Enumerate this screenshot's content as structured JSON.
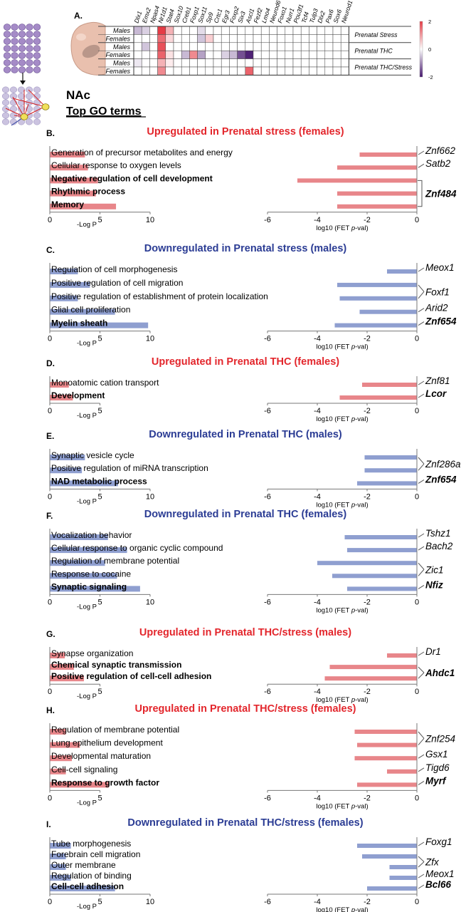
{
  "header": {
    "panel_letter": "A.",
    "region": "NAc",
    "subtitle": "Top GO terms"
  },
  "heatmap": {
    "genes": [
      "Dlx1",
      "Emx2",
      "Npas4",
      "Nr1d1",
      "Stat4",
      "Sox10",
      "Creb1",
      "Foxp1",
      "Sox11",
      "Sp9",
      "Crtc1",
      "Egr3",
      "Foxp2",
      "Six3",
      "Ascl1",
      "Fezf2",
      "Lmo4",
      "Neurod6",
      "Foxo1",
      "Nurr1",
      "Pou3f1",
      "Tcf4",
      "Tulp3",
      "Dlx2",
      "Pax6",
      "Sox6",
      "Neurod1"
    ],
    "rows": [
      {
        "group": "Prenatal Stress",
        "sex": "Males",
        "values": [
          -0.6,
          -0.4,
          0,
          2,
          0.8,
          0,
          0,
          0,
          -0.3,
          0,
          0,
          0,
          0,
          0,
          0,
          0,
          0,
          0,
          0,
          0,
          0,
          0,
          0,
          0,
          0,
          0,
          0
        ]
      },
      {
        "group": "Prenatal Stress",
        "sex": "Females",
        "values": [
          0,
          0,
          0,
          1.5,
          0.4,
          0,
          0,
          0,
          -0.5,
          0.5,
          0,
          0,
          0,
          0,
          0,
          0,
          0,
          0,
          0,
          0,
          0,
          0,
          0,
          0,
          0,
          0,
          0
        ]
      },
      {
        "group": "Prenatal THC",
        "sex": "Males",
        "values": [
          0,
          -0.5,
          0,
          1.8,
          0,
          0,
          0,
          0,
          0,
          0,
          0,
          0,
          0,
          0,
          0,
          0,
          0,
          0,
          0,
          0,
          0,
          0,
          0,
          0,
          0,
          0,
          0
        ]
      },
      {
        "group": "Prenatal THC",
        "sex": "Females",
        "values": [
          0,
          0,
          0,
          1.6,
          0.3,
          0,
          -0.6,
          1.2,
          -0.8,
          0,
          0,
          -0.4,
          -0.6,
          -1.5,
          -1.9,
          0,
          0,
          0,
          0,
          0,
          0,
          0,
          0,
          0,
          0,
          0,
          0
        ]
      },
      {
        "group": "Prenatal THC/Stress",
        "sex": "Males",
        "values": [
          -0.2,
          0,
          0,
          0.8,
          0.2,
          0,
          0,
          0,
          0,
          0,
          0,
          0,
          0,
          0,
          0,
          0,
          0,
          0,
          0,
          0,
          0,
          0,
          0,
          0,
          0,
          0,
          0
        ]
      },
      {
        "group": "Prenatal THC/Stress",
        "sex": "Females",
        "values": [
          0,
          0,
          0,
          1.2,
          0,
          0,
          0,
          0,
          0,
          0,
          0,
          0,
          0,
          0,
          1.6,
          0,
          0,
          0,
          0,
          0,
          0,
          0,
          0,
          0,
          0,
          0,
          0
        ]
      }
    ],
    "scale_ticks": [
      "2",
      "0",
      "-2"
    ],
    "scale_range": [
      -2,
      2
    ]
  },
  "axis_labels": {
    "left": "-Log P",
    "right_prefix": "log10 (FET ",
    "right_italic": "p",
    "right_suffix": "-val)"
  },
  "chart_data": [
    {
      "type": "bar",
      "letter": "B.",
      "title": "Upregulated in Prenatal stress (females)",
      "direction": "up",
      "left": {
        "xlim": [
          0,
          10
        ],
        "xticks": [
          "0",
          "5",
          "10"
        ],
        "categories": [
          "Generation of precursor metabolites and energy",
          "Cellular response to oxygen levels",
          "Negative regulation of cell development",
          "Rhythmic process",
          "Memory"
        ],
        "values": [
          3.5,
          3.8,
          4.8,
          4.6,
          6.6
        ],
        "bold": [
          false,
          false,
          true,
          true,
          true
        ]
      },
      "right": {
        "xlim": [
          -6,
          0
        ],
        "xticks": [
          "-6",
          "-4",
          "-2",
          "0"
        ],
        "tfs": [
          "Znf662",
          "Satb2",
          "Znf484"
        ],
        "tf_bold": [
          false,
          false,
          true
        ],
        "values": [
          -2.3,
          -3.2,
          -4.8,
          -3.2,
          -3.2
        ],
        "tf_of_bar": [
          0,
          1,
          2,
          2,
          2
        ]
      }
    },
    {
      "type": "bar",
      "letter": "C.",
      "title": "Downregulated in Prenatal stress (males)",
      "direction": "down",
      "left": {
        "xlim": [
          0,
          10
        ],
        "xticks": [
          "0",
          "5",
          "10"
        ],
        "categories": [
          "Regulation of cell morphogenesis",
          "Positive regulation of cell migration",
          "Positive regulation of establishment of protein localization",
          "Glial cell proliferation",
          "Myelin sheath"
        ],
        "values": [
          2.8,
          4.0,
          2.8,
          6.5,
          9.8
        ],
        "bold": [
          false,
          false,
          false,
          false,
          true
        ]
      },
      "right": {
        "xlim": [
          -6,
          0
        ],
        "xticks": [
          "-6",
          "-4",
          "-2",
          "0"
        ],
        "tfs": [
          "Meox1",
          "Foxf1",
          "Arid2",
          "Znf654"
        ],
        "tf_bold": [
          false,
          false,
          false,
          true
        ],
        "values": [
          -1.2,
          -3.2,
          -3.1,
          -2.3,
          -3.3
        ],
        "tf_of_bar": [
          0,
          1,
          1,
          2,
          3
        ]
      }
    },
    {
      "type": "bar",
      "letter": "D.",
      "title": "Upregulated in Prenatal THC (females)",
      "direction": "up",
      "left": {
        "xlim": [
          0,
          5
        ],
        "xticks": [
          "0",
          "5"
        ],
        "categories": [
          "Monoatomic cation transport",
          "Development"
        ],
        "values": [
          1.9,
          2.3
        ],
        "bold": [
          false,
          true
        ]
      },
      "right": {
        "xlim": [
          -6,
          0
        ],
        "xticks": [
          "-6",
          "-4",
          "-2",
          "0"
        ],
        "tfs": [
          "Znf81",
          "Lcor"
        ],
        "tf_bold": [
          false,
          true
        ],
        "values": [
          -2.2,
          -3.1
        ],
        "tf_of_bar": [
          0,
          1
        ]
      }
    },
    {
      "type": "bar",
      "letter": "E.",
      "title": "Downregulated in Prenatal THC (males)",
      "direction": "down",
      "left": {
        "xlim": [
          0,
          10
        ],
        "xticks": [
          "0",
          "5",
          "10"
        ],
        "categories": [
          "Synaptic vesicle cycle",
          "Positive regulation of miRNA transcription",
          "NAD metabolic process"
        ],
        "values": [
          3.5,
          3.2,
          6.8
        ],
        "bold": [
          false,
          false,
          true
        ]
      },
      "right": {
        "xlim": [
          -6,
          0
        ],
        "xticks": [
          "-6",
          "-4",
          "-2",
          "0"
        ],
        "tfs": [
          "Znf286a",
          "Znf654"
        ],
        "tf_bold": [
          false,
          true
        ],
        "values": [
          -2.1,
          -2.1,
          -2.4
        ],
        "tf_of_bar": [
          0,
          0,
          1
        ]
      }
    },
    {
      "type": "bar",
      "letter": "F.",
      "title": "Downregulated in Prenatal THC (females)",
      "direction": "down",
      "left": {
        "xlim": [
          0,
          10
        ],
        "xticks": [
          "0",
          "5",
          "10"
        ],
        "categories": [
          "Vocalization behavior",
          "Cellular response to organic cyclic compound",
          "Regulation of membrane potential",
          "Response to cocaine",
          "Synaptic signaling"
        ],
        "values": [
          5.8,
          7.7,
          5.5,
          6.7,
          9.0
        ],
        "bold": [
          false,
          false,
          false,
          false,
          true
        ]
      },
      "right": {
        "xlim": [
          -6,
          0
        ],
        "xticks": [
          "-6",
          "-4",
          "-2",
          "0"
        ],
        "tfs": [
          "Tshz1",
          "Bach2",
          "Zic1",
          "Nfiz"
        ],
        "tf_bold": [
          false,
          false,
          false,
          true
        ],
        "values": [
          -2.9,
          -2.8,
          -4.0,
          -3.4,
          -2.8
        ],
        "tf_of_bar": [
          0,
          1,
          2,
          2,
          3
        ]
      }
    },
    {
      "type": "bar",
      "letter": "G.",
      "title": "Upregulated in Prenatal THC/stress (males)",
      "direction": "up",
      "left": {
        "xlim": [
          0,
          5
        ],
        "xticks": [
          "0",
          "5"
        ],
        "categories": [
          "Synapse organization",
          "Chemical synaptic transmission",
          "Positive regulation of cell-cell adhesion"
        ],
        "values": [
          1.5,
          2.4,
          3.4
        ],
        "bold": [
          false,
          true,
          true
        ]
      },
      "right": {
        "xlim": [
          -6,
          0
        ],
        "xticks": [
          "-6",
          "-4",
          "-2",
          "0"
        ],
        "tfs": [
          "Dr1",
          "Ahdc1"
        ],
        "tf_bold": [
          false,
          true
        ],
        "values": [
          -1.2,
          -3.5,
          -3.7
        ],
        "tf_of_bar": [
          0,
          1,
          1
        ]
      }
    },
    {
      "type": "bar",
      "letter": "H.",
      "title": "Upregulated in Prenatal THC/stress (females)",
      "direction": "up",
      "left": {
        "xlim": [
          0,
          5
        ],
        "xticks": [
          "0",
          "5"
        ],
        "categories": [
          "Regulation of membrane potential",
          "Lung epithelium development",
          "Developmental maturation",
          "Cell-cell signaling",
          "Response to growth factor"
        ],
        "values": [
          1.6,
          3.0,
          2.2,
          1.6,
          5.9
        ],
        "bold": [
          false,
          false,
          false,
          false,
          true
        ]
      },
      "right": {
        "xlim": [
          -6,
          0
        ],
        "xticks": [
          "-6",
          "-4",
          "-2",
          "0"
        ],
        "tfs": [
          "Znf254",
          "Gsx1",
          "Tigd6",
          "Myrf"
        ],
        "tf_bold": [
          false,
          false,
          false,
          true
        ],
        "values": [
          -2.5,
          -2.4,
          -2.5,
          -1.2,
          -2.4
        ],
        "tf_of_bar": [
          0,
          0,
          1,
          2,
          3
        ]
      }
    },
    {
      "type": "bar",
      "letter": "I.",
      "title": "Downregulated in Prenatal THC/stress (females)",
      "direction": "down",
      "left": {
        "xlim": [
          0,
          10
        ],
        "xticks": [
          "0",
          "5",
          "10"
        ],
        "categories": [
          "Tube morphogenesis",
          "Forebrain cell migration",
          "Outer membrane",
          "Regulation of binding",
          "Cell-cell adhesion"
        ],
        "values": [
          2.1,
          1.6,
          1.6,
          2.1,
          6.5
        ],
        "bold": [
          false,
          false,
          false,
          false,
          true
        ]
      },
      "right": {
        "xlim": [
          -6,
          0
        ],
        "xticks": [
          "-6",
          "-4",
          "-2",
          "0"
        ],
        "tfs": [
          "Foxg1",
          "Zfx",
          "Meox1",
          "Bcl66"
        ],
        "tf_bold": [
          false,
          false,
          false,
          true
        ],
        "values": [
          -2.4,
          -2.2,
          -1.1,
          -1.1,
          -2.0
        ],
        "tf_of_bar": [
          0,
          1,
          1,
          2,
          3
        ]
      }
    }
  ],
  "colors": {
    "up": "#e8868a",
    "down": "#8f9fd0",
    "up_title": "#e3262c",
    "down_title": "#2b3c94"
  }
}
